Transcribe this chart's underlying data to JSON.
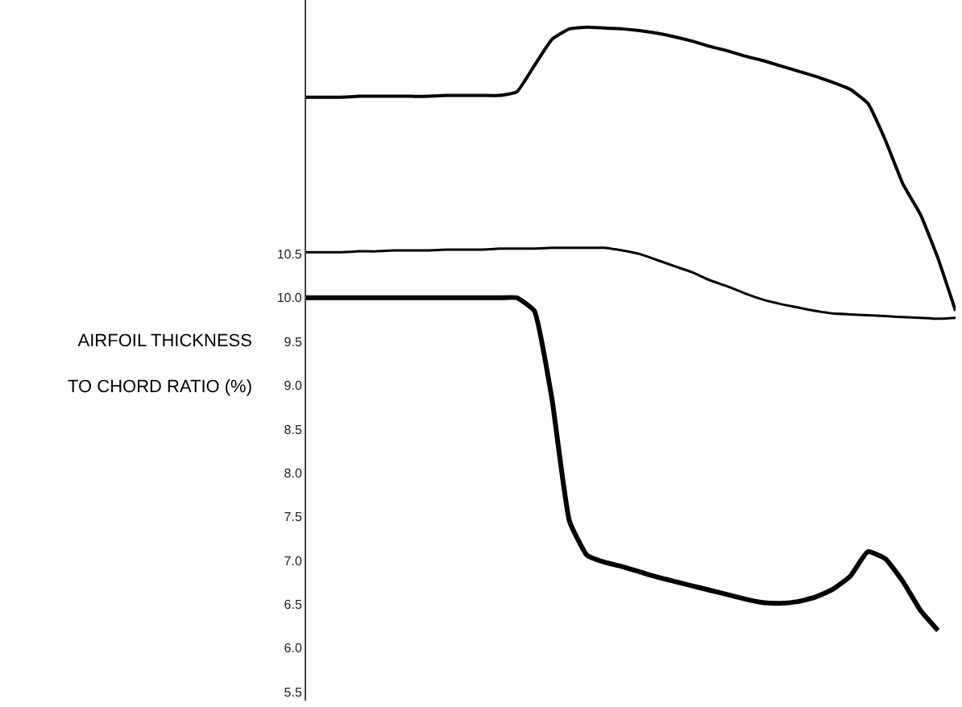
{
  "chart_data": {
    "type": "line",
    "ylabel": "AIRFOIL THICKNESS\nTO CHORD RATIO (%)",
    "categories": [
      null,
      null,
      null,
      null,
      null,
      null,
      null,
      null,
      null,
      null,
      null,
      null,
      null,
      null,
      null,
      null,
      null,
      null,
      null,
      null,
      null,
      null,
      null,
      null,
      null,
      null,
      null,
      null,
      null,
      null,
      null,
      null,
      null,
      null,
      null,
      null,
      null,
      null
    ],
    "series": [
      {
        "color": "#000000",
        "values": [
          12.29,
          12.29,
          12.29,
          12.3,
          12.3,
          12.3,
          12.3,
          12.3,
          12.31,
          12.31,
          12.31,
          12.31,
          12.35,
          12.65,
          12.95,
          13.07,
          13.09,
          13.08,
          13.07,
          13.05,
          13.02,
          12.98,
          12.93,
          12.87,
          12.82,
          12.76,
          12.71,
          12.65,
          12.59,
          12.53,
          12.46,
          12.38,
          12.22,
          11.8,
          11.3,
          10.95,
          10.45,
          9.85
        ]
      },
      {
        "color": "#000000",
        "values": [
          10.52,
          10.52,
          10.52,
          10.53,
          10.53,
          10.54,
          10.54,
          10.54,
          10.55,
          10.55,
          10.55,
          10.56,
          10.56,
          10.56,
          10.57,
          10.57,
          10.57,
          10.57,
          10.54,
          10.5,
          10.43,
          10.36,
          10.29,
          10.2,
          10.13,
          10.05,
          9.98,
          9.93,
          9.89,
          9.85,
          9.82,
          9.81,
          9.8,
          9.79,
          9.78,
          9.77,
          9.76,
          9.77
        ]
      },
      {
        "color": "#000000",
        "values": [
          10.0,
          10.0,
          10.0,
          10.0,
          10.0,
          10.0,
          10.0,
          10.0,
          10.0,
          10.0,
          10.0,
          10.0,
          10.0,
          9.85,
          8.85,
          7.45,
          7.06,
          6.98,
          6.93,
          6.87,
          6.81,
          6.76,
          6.71,
          6.66,
          6.61,
          6.56,
          6.52,
          6.51,
          6.53,
          6.58,
          6.67,
          6.82,
          7.1,
          7.02,
          6.76,
          6.43,
          6.2,
          null
        ]
      }
    ],
    "ylim": [
      5.4,
      13.4
    ],
    "yticks": [
      5.5,
      {
        "value": 6,
        "label": "6.0"
      },
      6.5,
      {
        "value": 7,
        "label": "7.0"
      },
      7.5,
      {
        "value": 8,
        "label": "8.0"
      },
      8.5,
      {
        "value": 9,
        "label": "9.0"
      },
      9.5,
      {
        "value": 10,
        "label": "10.0"
      },
      10.5
    ],
    "grid": false,
    "tick_labels": "y",
    "marker": "none",
    "line_style": "solid"
  }
}
